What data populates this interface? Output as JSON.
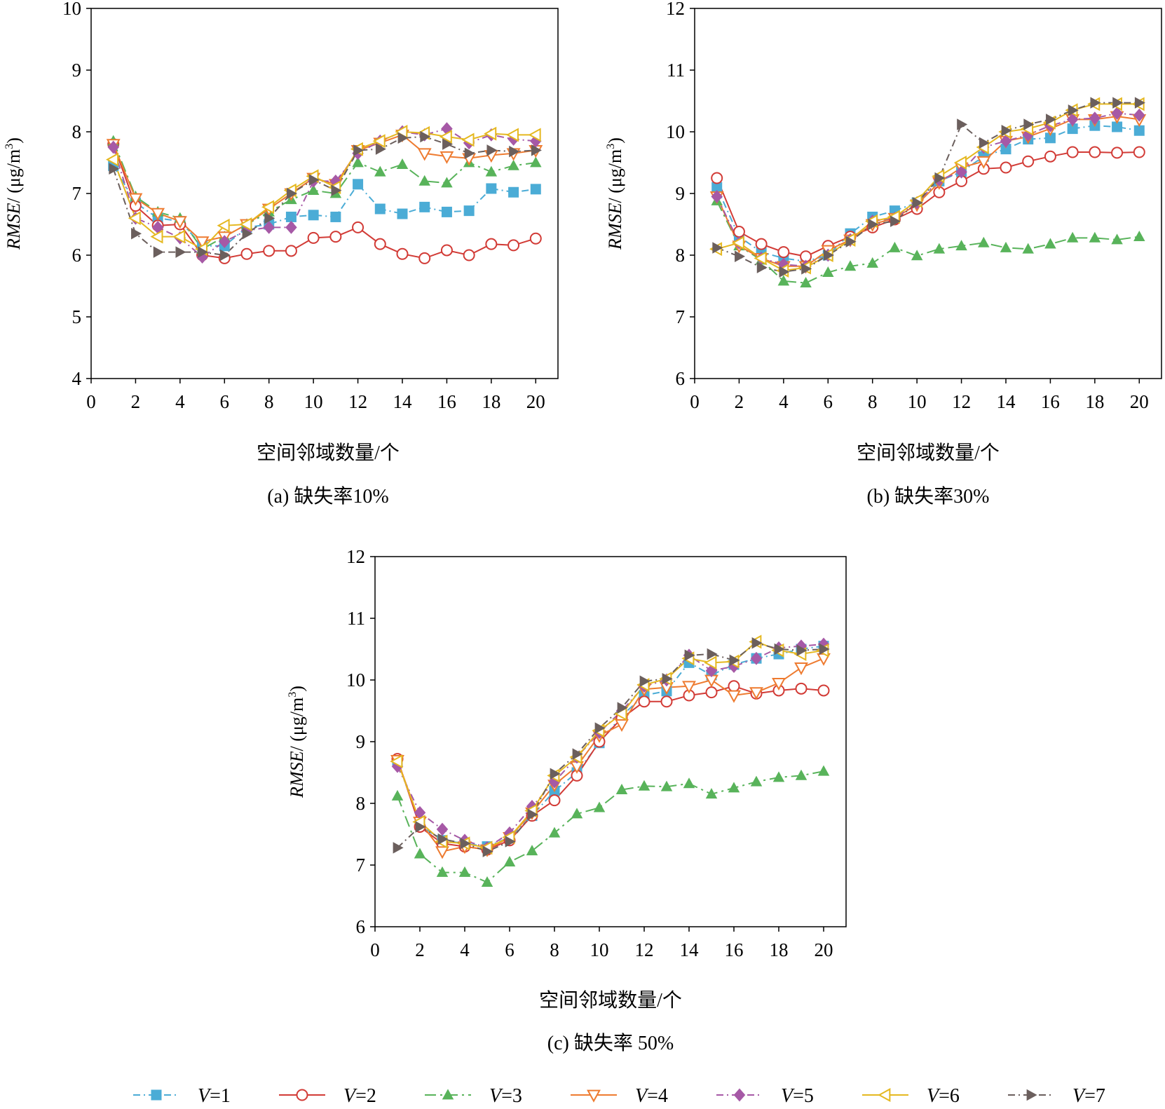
{
  "legend": [
    {
      "var": "V",
      "eq": "=1",
      "color": "#4bacd6",
      "marker": "square",
      "dash": "dashdot"
    },
    {
      "var": "V",
      "eq": "=2",
      "color": "#d23b36",
      "marker": "circle",
      "dash": "solid"
    },
    {
      "var": "V",
      "eq": "=3",
      "color": "#58b35a",
      "marker": "triangle-up",
      "dash": "longdashdot"
    },
    {
      "var": "V",
      "eq": "=4",
      "color": "#ee7b30",
      "marker": "triangle-down",
      "dash": "solid"
    },
    {
      "var": "V",
      "eq": "=5",
      "color": "#a659a6",
      "marker": "diamond",
      "dash": "dashdot"
    },
    {
      "var": "V",
      "eq": "=6",
      "color": "#e5b820",
      "marker": "triangle-left",
      "dash": "solid"
    },
    {
      "var": "V",
      "eq": "=7",
      "color": "#6b5f5d",
      "marker": "triangle-right",
      "dash": "dashdot"
    }
  ],
  "chart_data": [
    {
      "type": "line",
      "title": "",
      "caption": "(a) 缺失率10%",
      "xlabel": "空间邻域数量/个",
      "ylabel_italic": "RMSE",
      "ylabel_rest": "/ (μg/m",
      "ylabel_sup": "3",
      "ylabel_close": ")",
      "xlim": [
        0,
        21
      ],
      "ylim": [
        4,
        10
      ],
      "xticks": [
        0,
        2,
        4,
        6,
        8,
        10,
        12,
        14,
        16,
        18,
        20
      ],
      "yticks": [
        4,
        5,
        6,
        7,
        8,
        9,
        10
      ],
      "x": [
        1,
        2,
        3,
        4,
        5,
        6,
        7,
        8,
        9,
        10,
        11,
        12,
        13,
        14,
        15,
        16,
        17,
        18,
        19,
        20
      ],
      "series": [
        {
          "name": "V=1",
          "values": [
            7.45,
            6.85,
            6.6,
            6.55,
            6.15,
            6.15,
            6.45,
            6.5,
            6.62,
            6.65,
            6.62,
            7.15,
            6.75,
            6.67,
            6.78,
            6.7,
            6.72,
            7.08,
            7.02,
            7.07
          ]
        },
        {
          "name": "V=2",
          "values": [
            7.8,
            6.8,
            6.48,
            6.5,
            6.0,
            5.95,
            6.02,
            6.07,
            6.07,
            6.28,
            6.3,
            6.45,
            6.18,
            6.02,
            5.95,
            6.08,
            6.0,
            6.18,
            6.16,
            6.27
          ]
        },
        {
          "name": "V=3",
          "values": [
            7.85,
            6.95,
            6.7,
            6.6,
            6.1,
            6.3,
            6.5,
            6.7,
            6.9,
            7.05,
            7.0,
            7.5,
            7.35,
            7.47,
            7.2,
            7.17,
            7.5,
            7.35,
            7.45,
            7.5
          ]
        },
        {
          "name": "V=4",
          "values": [
            7.8,
            6.92,
            6.68,
            6.55,
            6.22,
            6.3,
            6.5,
            6.75,
            7.0,
            7.25,
            7.15,
            7.7,
            7.82,
            7.95,
            7.65,
            7.6,
            7.57,
            7.62,
            7.65,
            7.7
          ]
        },
        {
          "name": "V=5",
          "values": [
            7.75,
            6.6,
            6.45,
            6.28,
            5.97,
            6.22,
            6.4,
            6.45,
            6.45,
            7.2,
            7.2,
            7.65,
            7.85,
            8.0,
            7.95,
            8.05,
            7.82,
            7.95,
            7.88,
            7.85
          ]
        },
        {
          "name": "V=6",
          "values": [
            7.55,
            6.6,
            6.3,
            6.3,
            6.1,
            6.48,
            6.5,
            6.78,
            7.05,
            7.28,
            7.1,
            7.72,
            7.85,
            8.0,
            7.98,
            7.92,
            7.87,
            7.97,
            7.95,
            7.95
          ]
        },
        {
          "name": "V=7",
          "values": [
            7.4,
            6.35,
            6.05,
            6.05,
            6.05,
            6.0,
            6.35,
            6.6,
            7.0,
            7.22,
            7.05,
            7.7,
            7.72,
            7.9,
            7.92,
            7.8,
            7.65,
            7.7,
            7.68,
            7.7
          ]
        }
      ]
    },
    {
      "type": "line",
      "title": "",
      "caption": "(b) 缺失率30%",
      "xlabel": "空间邻域数量/个",
      "ylabel_italic": "RMSE",
      "ylabel_rest": "/ (μg/m",
      "ylabel_sup": "3",
      "ylabel_close": ")",
      "xlim": [
        0,
        21
      ],
      "ylim": [
        6,
        12
      ],
      "xticks": [
        0,
        2,
        4,
        6,
        8,
        10,
        12,
        14,
        16,
        18,
        20
      ],
      "yticks": [
        6,
        7,
        8,
        9,
        10,
        11,
        12
      ],
      "x": [
        1,
        2,
        3,
        4,
        5,
        6,
        7,
        8,
        9,
        10,
        11,
        12,
        13,
        14,
        15,
        16,
        17,
        18,
        19,
        20
      ],
      "series": [
        {
          "name": "V=1",
          "values": [
            9.1,
            8.3,
            8.05,
            7.95,
            7.9,
            8.0,
            8.35,
            8.62,
            8.72,
            8.85,
            9.2,
            9.35,
            9.6,
            9.72,
            9.88,
            9.9,
            10.05,
            10.1,
            10.08,
            10.02
          ]
        },
        {
          "name": "V=2",
          "values": [
            9.25,
            8.38,
            8.18,
            8.05,
            7.98,
            8.15,
            8.3,
            8.45,
            8.58,
            8.75,
            9.02,
            9.2,
            9.4,
            9.42,
            9.52,
            9.6,
            9.67,
            9.67,
            9.66,
            9.67
          ]
        },
        {
          "name": "V=3",
          "values": [
            8.88,
            8.15,
            7.92,
            7.58,
            7.55,
            7.72,
            7.82,
            7.87,
            8.12,
            7.99,
            8.1,
            8.15,
            8.2,
            8.12,
            8.1,
            8.18,
            8.28,
            8.28,
            8.25,
            8.3
          ]
        },
        {
          "name": "V=4",
          "values": [
            8.95,
            8.15,
            7.95,
            7.82,
            7.82,
            8.08,
            8.25,
            8.5,
            8.6,
            8.82,
            9.18,
            9.42,
            9.52,
            9.85,
            9.92,
            10.05,
            10.2,
            10.2,
            10.25,
            10.2
          ]
        },
        {
          "name": "V=5",
          "values": [
            8.95,
            8.2,
            7.95,
            7.85,
            7.82,
            8.0,
            8.25,
            8.55,
            8.6,
            8.85,
            9.22,
            9.35,
            9.75,
            9.85,
            9.95,
            10.1,
            10.2,
            10.22,
            10.3,
            10.27
          ]
        },
        {
          "name": "V=6",
          "values": [
            8.1,
            8.2,
            7.95,
            7.75,
            7.8,
            8.0,
            8.25,
            8.55,
            8.62,
            8.88,
            9.28,
            9.5,
            9.75,
            10.0,
            10.05,
            10.15,
            10.35,
            10.45,
            10.45,
            10.45
          ]
        },
        {
          "name": "V=7",
          "values": [
            8.12,
            7.98,
            7.8,
            7.73,
            7.78,
            8.0,
            8.22,
            8.5,
            8.55,
            8.85,
            9.25,
            10.12,
            9.82,
            10.02,
            10.12,
            10.2,
            10.35,
            10.47,
            10.47,
            10.47
          ]
        }
      ]
    },
    {
      "type": "line",
      "title": "",
      "caption": "(c) 缺失率 50%",
      "xlabel": "空间邻域数量/个",
      "ylabel_italic": "RMSE",
      "ylabel_rest": "/ (μg/m",
      "ylabel_sup": "3",
      "ylabel_close": ")",
      "xlim": [
        0,
        21
      ],
      "ylim": [
        6,
        12
      ],
      "xticks": [
        0,
        2,
        4,
        6,
        8,
        10,
        12,
        14,
        16,
        18,
        20
      ],
      "yticks": [
        6,
        7,
        8,
        9,
        10,
        11,
        12
      ],
      "x": [
        1,
        2,
        3,
        4,
        5,
        6,
        7,
        8,
        9,
        10,
        11,
        12,
        13,
        14,
        15,
        16,
        17,
        18,
        19,
        20
      ],
      "series": [
        {
          "name": "V=1",
          "values": [
            8.7,
            7.65,
            7.4,
            7.35,
            7.3,
            7.45,
            7.8,
            8.2,
            8.5,
            8.98,
            9.42,
            9.75,
            9.82,
            10.28,
            10.08,
            10.25,
            10.35,
            10.42,
            10.5,
            10.55
          ]
        },
        {
          "name": "V=2",
          "values": [
            8.72,
            7.62,
            7.35,
            7.3,
            7.25,
            7.4,
            7.8,
            8.05,
            8.45,
            9.0,
            9.38,
            9.65,
            9.65,
            9.75,
            9.8,
            9.9,
            9.78,
            9.83,
            9.86,
            9.83
          ]
        },
        {
          "name": "V=3",
          "values": [
            8.12,
            7.18,
            6.88,
            6.88,
            6.72,
            7.05,
            7.23,
            7.52,
            7.83,
            7.93,
            8.22,
            8.28,
            8.27,
            8.32,
            8.15,
            8.25,
            8.35,
            8.42,
            8.45,
            8.52
          ]
        },
        {
          "name": "V=4",
          "values": [
            8.7,
            7.7,
            7.22,
            7.3,
            7.25,
            7.45,
            7.85,
            8.3,
            8.6,
            9.1,
            9.28,
            9.85,
            9.88,
            9.9,
            10.0,
            9.75,
            9.8,
            9.95,
            10.2,
            10.35
          ]
        },
        {
          "name": "V=5",
          "values": [
            8.6,
            7.85,
            7.58,
            7.4,
            7.28,
            7.52,
            7.95,
            8.35,
            8.75,
            9.15,
            9.5,
            9.9,
            10.0,
            10.4,
            10.15,
            10.22,
            10.35,
            10.52,
            10.55,
            10.58
          ]
        },
        {
          "name": "V=6",
          "values": [
            8.68,
            7.7,
            7.38,
            7.35,
            7.28,
            7.45,
            7.88,
            8.45,
            8.75,
            9.18,
            9.45,
            9.92,
            10.02,
            10.35,
            10.28,
            10.3,
            10.62,
            10.48,
            10.42,
            10.48
          ]
        },
        {
          "name": "V=7",
          "values": [
            7.28,
            7.62,
            7.42,
            7.35,
            7.22,
            7.38,
            7.82,
            8.48,
            8.8,
            9.22,
            9.55,
            9.98,
            10.02,
            10.4,
            10.42,
            10.32,
            10.6,
            10.5,
            10.48,
            10.5
          ]
        }
      ]
    }
  ]
}
